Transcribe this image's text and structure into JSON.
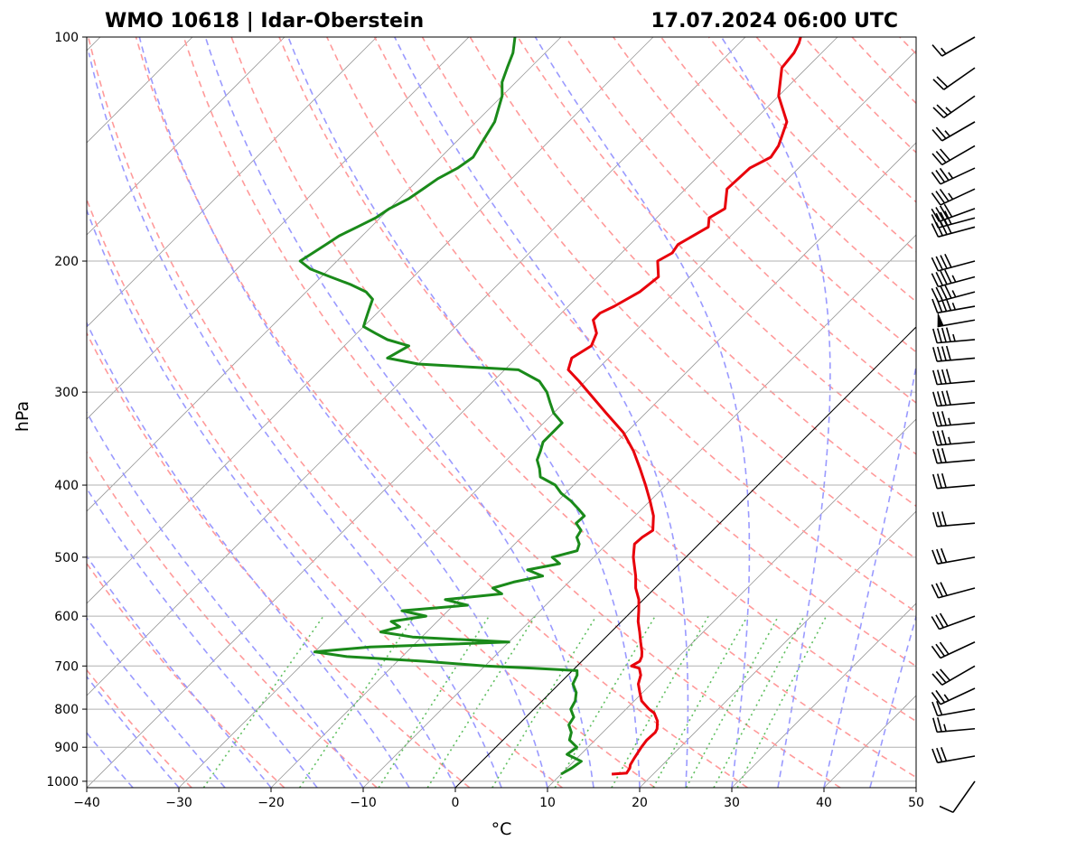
{
  "header": {
    "left": "WMO 10618 | Idar-Oberstein",
    "right": "17.07.2024 06:00 UTC"
  },
  "chart_data": {
    "type": "line",
    "subtype": "skew-T log-p sounding",
    "xlabel": "°C",
    "ylabel": "hPa",
    "xlim": [
      -40,
      50
    ],
    "ylim": [
      1020,
      100
    ],
    "y_scale": "log",
    "x_ticks": [
      -40,
      -30,
      -20,
      -10,
      0,
      10,
      20,
      30,
      40,
      50
    ],
    "x_tick_labels": [
      "−40",
      "−30",
      "−20",
      "−10",
      "0",
      "10",
      "20",
      "30",
      "40",
      "50"
    ],
    "y_ticks": [
      1000,
      900,
      800,
      700,
      600,
      500,
      400,
      300,
      200,
      100
    ],
    "y_tick_labels": [
      "1000",
      "900",
      "800",
      "700",
      "600",
      "500",
      "400",
      "300",
      "200",
      "100"
    ],
    "grid": true,
    "colors": {
      "temperature": "#e8000b",
      "dewpoint": "#1a8a1a",
      "dry_adiabats": "#ff9a9a",
      "moist_adiabats": "#9a9aff",
      "mixing_ratio": "#5fbf5f",
      "isotherms": "#999999",
      "zero_isotherm": "#000000",
      "wind_barbs": "#000000"
    },
    "series": [
      {
        "role": "temperature",
        "pressure": [
          978,
          975,
          960,
          950,
          930,
          900,
          880,
          860,
          850,
          830,
          810,
          800,
          780,
          760,
          740,
          720,
          705,
          700,
          690,
          680,
          670,
          650,
          630,
          610,
          590,
          570,
          550,
          530,
          500,
          480,
          470,
          460,
          440,
          420,
          400,
          380,
          360,
          340,
          320,
          300,
          290,
          280,
          270,
          260,
          250,
          240,
          235,
          230,
          220,
          210,
          200,
          195,
          190,
          180,
          175,
          170,
          160,
          150,
          145,
          140,
          130,
          120,
          110,
          105,
          102,
          100
        ],
        "temperature": [
          15.5,
          17.0,
          16.8,
          16.5,
          16.2,
          15.8,
          15.6,
          15.7,
          15.5,
          14.7,
          13.5,
          12.5,
          10.8,
          9.7,
          8.6,
          7.9,
          7.0,
          5.9,
          6.3,
          6.0,
          5.5,
          4.3,
          3.1,
          1.8,
          0.7,
          -0.5,
          -2.1,
          -3.4,
          -5.7,
          -7.0,
          -6.9,
          -6.5,
          -8.0,
          -10.0,
          -12.2,
          -14.6,
          -17.2,
          -20.3,
          -24.3,
          -28.5,
          -30.7,
          -33.1,
          -34.0,
          -33.2,
          -34.0,
          -35.8,
          -35.8,
          -35.0,
          -33.8,
          -33.4,
          -35.2,
          -34.5,
          -34.8,
          -33.4,
          -34.3,
          -33.6,
          -35.5,
          -35.3,
          -34.2,
          -34.6,
          -36.3,
          -40.0,
          -42.7,
          -43.0,
          -43.5,
          -44.0
        ]
      },
      {
        "role": "dewpoint",
        "pressure": [
          978,
          960,
          940,
          920,
          900,
          880,
          860,
          840,
          820,
          800,
          780,
          760,
          740,
          720,
          710,
          705,
          700,
          690,
          680,
          670,
          660,
          650,
          640,
          630,
          620,
          610,
          600,
          590,
          580,
          570,
          560,
          550,
          540,
          530,
          520,
          510,
          500,
          490,
          480,
          470,
          460,
          450,
          440,
          430,
          420,
          410,
          400,
          390,
          380,
          370,
          360,
          350,
          340,
          330,
          320,
          310,
          300,
          290,
          280,
          275,
          270,
          260,
          255,
          250,
          245,
          240,
          235,
          230,
          225,
          220,
          215,
          210,
          205,
          200,
          195,
          190,
          185,
          180,
          175,
          170,
          165,
          160,
          155,
          150,
          145,
          140,
          130,
          120,
          115,
          110,
          105,
          100
        ],
        "temperature": [
          10.0,
          10.5,
          10.8,
          8.5,
          8.8,
          7.2,
          6.6,
          5.5,
          5.2,
          4.0,
          3.6,
          2.8,
          1.5,
          1.0,
          0.5,
          -4.5,
          -10.0,
          -17.0,
          -26.0,
          -30.0,
          -24.5,
          -10.0,
          -21.0,
          -25.0,
          -23.5,
          -25.0,
          -21.8,
          -25.0,
          -18.5,
          -21.5,
          -16.0,
          -17.6,
          -16.0,
          -13.5,
          -15.8,
          -13.0,
          -14.5,
          -12.5,
          -13.0,
          -14.0,
          -14.3,
          -15.6,
          -15.5,
          -17.0,
          -18.6,
          -20.5,
          -22.0,
          -24.5,
          -25.5,
          -26.7,
          -27.3,
          -28.0,
          -28.0,
          -28.0,
          -30.0,
          -31.5,
          -33.0,
          -35.0,
          -38.5,
          -50.0,
          -54.0,
          -53.0,
          -56.0,
          -58.0,
          -60.0,
          -60.5,
          -61.0,
          -61.5,
          -62.0,
          -63.5,
          -66.0,
          -69.0,
          -72.0,
          -74.0,
          -73.5,
          -73.0,
          -72.5,
          -71.5,
          -70.5,
          -70.0,
          -69.0,
          -68.5,
          -68.0,
          -67.0,
          -66.5,
          -67.0,
          -68.0,
          -70.0,
          -71.5,
          -72.5,
          -73.5,
          -75.0
        ]
      }
    ],
    "wind_barbs": {
      "pressure": [
        1000,
        925,
        850,
        800,
        750,
        700,
        650,
        600,
        550,
        500,
        450,
        400,
        370,
        350,
        330,
        310,
        290,
        270,
        255,
        240,
        230,
        220,
        210,
        200,
        180,
        175,
        170,
        160,
        150,
        140,
        130,
        120,
        110,
        100
      ],
      "speed_kt": [
        10,
        30,
        25,
        20,
        25,
        30,
        30,
        30,
        30,
        30,
        30,
        30,
        30,
        35,
        35,
        40,
        40,
        40,
        45,
        50,
        45,
        45,
        45,
        40,
        40,
        40,
        40,
        35,
        35,
        30,
        25,
        25,
        20,
        15
      ],
      "direction_deg": [
        215,
        260,
        265,
        260,
        245,
        240,
        245,
        250,
        255,
        260,
        265,
        265,
        265,
        265,
        265,
        265,
        265,
        265,
        265,
        260,
        260,
        255,
        255,
        255,
        255,
        255,
        250,
        245,
        245,
        240,
        240,
        235,
        235,
        240
      ]
    }
  }
}
